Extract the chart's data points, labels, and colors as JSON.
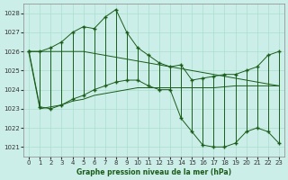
{
  "title": "Graphe pression niveau de la mer (hPa)",
  "bg": "#cceee8",
  "grid_color": "#aaddcc",
  "lc": "#1a5c1a",
  "xlim": [
    -0.5,
    23.5
  ],
  "ylim": [
    1020.5,
    1028.5
  ],
  "yticks": [
    1021,
    1022,
    1023,
    1024,
    1025,
    1026,
    1027,
    1028
  ],
  "xticks": [
    0,
    1,
    2,
    3,
    4,
    5,
    6,
    7,
    8,
    9,
    10,
    11,
    12,
    13,
    14,
    15,
    16,
    17,
    18,
    19,
    20,
    21,
    22,
    23
  ],
  "s_upper": [
    1026.0,
    1026.0,
    1026.2,
    1026.5,
    1027.0,
    1027.3,
    1027.2,
    1027.8,
    1028.2,
    1027.0,
    1026.2,
    1025.8,
    1025.4,
    1025.2,
    1025.3,
    1024.5,
    1024.6,
    1024.7,
    1024.8,
    1024.8,
    1025.0,
    1025.2,
    1025.8,
    1026.0
  ],
  "s_lower": [
    1026.0,
    1023.1,
    1023.0,
    1023.2,
    1023.5,
    1023.7,
    1024.0,
    1024.2,
    1024.4,
    1024.5,
    1024.5,
    1024.2,
    1024.0,
    1024.0,
    1022.5,
    1021.8,
    1021.1,
    1021.0,
    1021.0,
    1021.2,
    1021.8,
    1022.0,
    1021.8,
    1021.2
  ],
  "trend_upper": [
    1026.0,
    1026.0,
    1026.0,
    1026.0,
    1026.0,
    1026.0,
    1025.9,
    1025.8,
    1025.7,
    1025.6,
    1025.5,
    1025.4,
    1025.3,
    1025.2,
    1025.1,
    1025.0,
    1024.9,
    1024.8,
    1024.7,
    1024.6,
    1024.5,
    1024.4,
    1024.3,
    1024.2
  ],
  "trend_lower": [
    1025.9,
    1023.0,
    1023.1,
    1023.2,
    1023.4,
    1023.5,
    1023.7,
    1023.8,
    1023.9,
    1024.0,
    1024.1,
    1024.1,
    1024.1,
    1024.1,
    1024.1,
    1024.1,
    1024.1,
    1024.1,
    1024.15,
    1024.2,
    1024.2,
    1024.2,
    1024.2,
    1024.2
  ]
}
